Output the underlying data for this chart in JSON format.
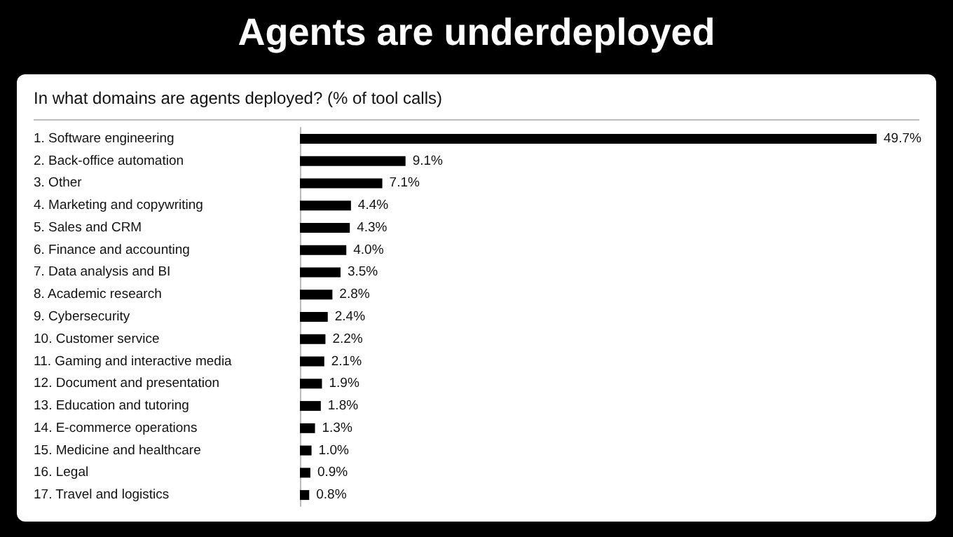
{
  "chart_data": {
    "type": "bar",
    "orientation": "horizontal",
    "title": "Agents are underdeployed",
    "subtitle": "In what domains are agents deployed? (% of tool calls)",
    "categories": [
      "1. Software engineering",
      "2. Back-office automation",
      "3. Other",
      "4. Marketing and copywriting",
      "5. Sales and CRM",
      "6. Finance and accounting",
      "7. Data analysis and BI",
      "8. Academic research",
      "9. Cybersecurity",
      "10. Customer service",
      "11. Gaming and interactive media",
      "12. Document and presentation",
      "13. Education and tutoring",
      "14. E-commerce operations",
      "15. Medicine and healthcare",
      "16. Legal",
      "17. Travel and logistics"
    ],
    "values": [
      49.7,
      9.1,
      7.1,
      4.4,
      4.3,
      4.0,
      3.5,
      2.8,
      2.4,
      2.2,
      2.1,
      1.9,
      1.8,
      1.3,
      1.0,
      0.9,
      0.8
    ],
    "value_labels": [
      "49.7%",
      "9.1%",
      "7.1%",
      "4.4%",
      "4.3%",
      "4.0%",
      "3.5%",
      "2.8%",
      "2.4%",
      "2.2%",
      "2.1%",
      "1.9%",
      "1.8%",
      "1.3%",
      "1.0%",
      "0.9%",
      "0.8%"
    ],
    "color": "#000000"
  }
}
